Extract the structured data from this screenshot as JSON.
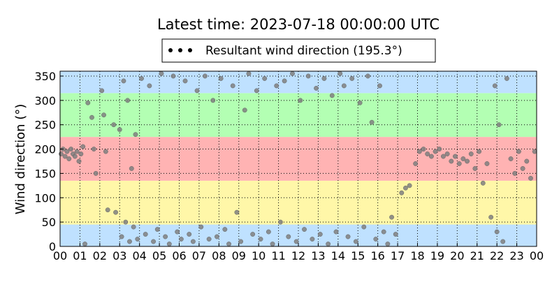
{
  "chart_data": {
    "type": "scatter",
    "title": "Latest time: 2023-07-18 00:00:00 UTC",
    "y_label": "Wind direction (°)",
    "legend_location": "upper center",
    "grid": true,
    "bands": [
      {
        "from": 0,
        "to": 45,
        "color": "#bfe1ff"
      },
      {
        "from": 45,
        "to": 135,
        "color": "#fff7a8"
      },
      {
        "from": 135,
        "to": 225,
        "color": "#ffb3b3"
      },
      {
        "from": 225,
        "to": 315,
        "color": "#b3ffb3"
      },
      {
        "from": 315,
        "to": 360,
        "color": "#bfe1ff"
      }
    ],
    "xlim": [
      0,
      24
    ],
    "xticks": [
      {
        "value": 0,
        "label": "00"
      },
      {
        "value": 1,
        "label": "01"
      },
      {
        "value": 2,
        "label": "02"
      },
      {
        "value": 3,
        "label": "03"
      },
      {
        "value": 4,
        "label": "04"
      },
      {
        "value": 5,
        "label": "05"
      },
      {
        "value": 6,
        "label": "06"
      },
      {
        "value": 7,
        "label": "07"
      },
      {
        "value": 8,
        "label": "08"
      },
      {
        "value": 9,
        "label": "09"
      },
      10,
      11,
      12,
      13,
      14,
      15,
      16,
      17,
      18,
      19,
      20,
      21,
      22,
      23,
      {
        "value": 24,
        "label": "00"
      }
    ],
    "ylim": [
      0,
      360
    ],
    "yticks": [
      0,
      50,
      100,
      150,
      200,
      250,
      300,
      350
    ],
    "series": [
      {
        "name": "Resultant wind direction (195.3°)",
        "color": "#7f7f7f",
        "legend_color": "#000000",
        "x": [
          0.05,
          0.15,
          0.25,
          0.35,
          0.45,
          0.55,
          0.65,
          0.75,
          0.85,
          0.95,
          1.05,
          1.15,
          1.25,
          1.4,
          1.6,
          1.7,
          1.8,
          2.1,
          2.2,
          2.3,
          2.4,
          2.7,
          2.8,
          3.0,
          3.1,
          3.2,
          3.3,
          3.4,
          3.5,
          3.6,
          3.7,
          3.8,
          3.9,
          4.1,
          4.3,
          4.5,
          4.7,
          4.9,
          5.1,
          5.3,
          5.5,
          5.7,
          5.9,
          6.1,
          6.3,
          6.5,
          6.7,
          6.9,
          7.1,
          7.3,
          7.5,
          7.7,
          7.9,
          8.1,
          8.3,
          8.5,
          8.7,
          8.9,
          9.1,
          9.3,
          9.5,
          9.7,
          9.9,
          10.1,
          10.3,
          10.5,
          10.7,
          10.9,
          11.1,
          11.3,
          11.5,
          11.7,
          11.9,
          12.1,
          12.3,
          12.5,
          12.7,
          12.9,
          13.1,
          13.3,
          13.5,
          13.7,
          13.9,
          14.1,
          14.3,
          14.5,
          14.7,
          14.9,
          15.1,
          15.3,
          15.5,
          15.7,
          15.9,
          16.1,
          16.3,
          16.5,
          16.7,
          16.9,
          17.2,
          17.4,
          17.6,
          17.9,
          18.1,
          18.3,
          18.5,
          18.7,
          18.9,
          19.1,
          19.3,
          19.5,
          19.7,
          19.9,
          20.1,
          20.3,
          20.5,
          20.7,
          20.9,
          21.1,
          21.3,
          21.5,
          21.7,
          21.9,
          22.0,
          22.1,
          22.3,
          22.5,
          22.7,
          22.9,
          23.1,
          23.3,
          23.5,
          23.7,
          23.9
        ],
        "values": [
          190,
          200,
          185,
          195,
          180,
          200,
          190,
          185,
          195,
          175,
          190,
          205,
          5,
          295,
          265,
          200,
          150,
          320,
          270,
          195,
          75,
          250,
          70,
          240,
          20,
          340,
          50,
          300,
          10,
          160,
          40,
          230,
          15,
          345,
          25,
          330,
          10,
          35,
          355,
          20,
          5,
          350,
          30,
          15,
          340,
          25,
          10,
          320,
          40,
          350,
          15,
          300,
          20,
          345,
          35,
          5,
          330,
          70,
          10,
          280,
          355,
          25,
          320,
          15,
          345,
          30,
          5,
          330,
          50,
          340,
          20,
          355,
          10,
          300,
          35,
          350,
          15,
          325,
          25,
          345,
          5,
          310,
          30,
          355,
          330,
          20,
          345,
          10,
          295,
          40,
          350,
          255,
          15,
          330,
          30,
          5,
          60,
          25,
          110,
          120,
          125,
          170,
          195,
          200,
          190,
          185,
          195,
          200,
          185,
          190,
          175,
          185,
          170,
          180,
          175,
          190,
          160,
          195,
          130,
          170,
          60,
          330,
          30,
          250,
          10,
          345,
          180,
          150,
          195,
          160,
          175,
          140,
          195
        ]
      }
    ]
  }
}
